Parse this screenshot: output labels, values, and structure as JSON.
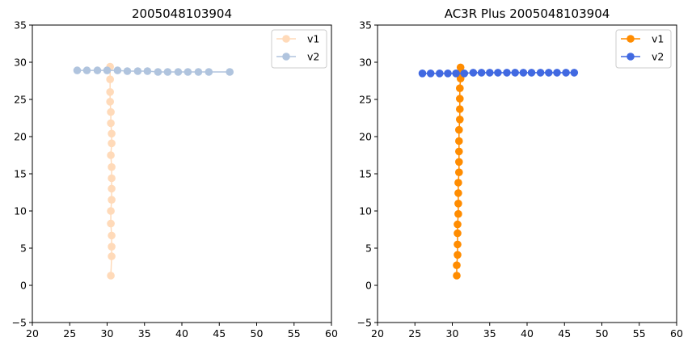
{
  "chart_data": [
    {
      "type": "line",
      "title": "2005048103904",
      "xlabel": "",
      "ylabel": "",
      "xlim": [
        20,
        60
      ],
      "ylim": [
        -5,
        35
      ],
      "xticks": [
        "20",
        "25",
        "30",
        "35",
        "40",
        "45",
        "50",
        "55",
        "60"
      ],
      "yticks": [
        "−5",
        "0",
        "5",
        "10",
        "15",
        "20",
        "25",
        "30",
        "35"
      ],
      "grid": false,
      "legend": "top-right",
      "series": [
        {
          "name": "v1",
          "color": "#ffdab9",
          "x": [
            30.5,
            30.6,
            30.6,
            30.6,
            30.5,
            30.5,
            30.6,
            30.6,
            30.6,
            30.6,
            30.5,
            30.6,
            30.6,
            30.5,
            30.5,
            30.4,
            30.4,
            30.4,
            30.4
          ],
          "y": [
            1.3,
            3.9,
            5.2,
            6.7,
            8.3,
            10.0,
            11.5,
            13.0,
            14.4,
            15.9,
            17.5,
            19.1,
            20.4,
            21.8,
            23.3,
            24.7,
            26.0,
            27.7,
            29.4
          ]
        },
        {
          "name": "v2",
          "color": "#b0c4de",
          "x": [
            26.0,
            27.3,
            28.7,
            30.0,
            31.4,
            32.7,
            34.1,
            35.4,
            36.8,
            38.1,
            39.5,
            40.8,
            42.2,
            43.6,
            46.4
          ],
          "y": [
            28.9,
            28.9,
            28.9,
            28.9,
            28.9,
            28.8,
            28.8,
            28.8,
            28.7,
            28.7,
            28.7,
            28.7,
            28.7,
            28.7,
            28.7
          ]
        }
      ]
    },
    {
      "type": "line",
      "title": "AC3R Plus 2005048103904",
      "xlabel": "",
      "ylabel": "",
      "xlim": [
        20,
        60
      ],
      "ylim": [
        -5,
        35
      ],
      "xticks": [
        "20",
        "25",
        "30",
        "35",
        "40",
        "45",
        "50",
        "55",
        "60"
      ],
      "yticks": [
        "−5",
        "0",
        "5",
        "10",
        "15",
        "20",
        "25",
        "30",
        "35"
      ],
      "grid": false,
      "legend": "top-right",
      "series": [
        {
          "name": "v1",
          "color": "#ff8c00",
          "x": [
            30.6,
            30.6,
            30.7,
            30.7,
            30.7,
            30.7,
            30.8,
            30.8,
            30.8,
            30.8,
            30.9,
            30.9,
            30.9,
            30.9,
            30.9,
            31.0,
            31.0,
            31.0,
            31.0,
            31.1,
            31.1,
            31.1
          ],
          "y": [
            1.3,
            2.7,
            4.1,
            5.5,
            7.0,
            8.2,
            9.6,
            11.0,
            12.4,
            13.8,
            15.2,
            16.6,
            18.0,
            19.4,
            20.9,
            22.3,
            23.7,
            25.1,
            26.5,
            27.8,
            29.3,
            28.5
          ]
        },
        {
          "name": "v2",
          "color": "#4169e1",
          "x": [
            26.0,
            27.1,
            28.3,
            29.4,
            30.5,
            31.6,
            32.8,
            33.9,
            35.0,
            36.1,
            37.3,
            38.4,
            39.5,
            40.6,
            41.8,
            42.9,
            44.0,
            45.2,
            46.3
          ],
          "y": [
            28.5,
            28.5,
            28.5,
            28.5,
            28.5,
            28.5,
            28.6,
            28.6,
            28.6,
            28.6,
            28.6,
            28.6,
            28.6,
            28.6,
            28.6,
            28.6,
            28.6,
            28.6,
            28.6
          ]
        }
      ]
    }
  ]
}
